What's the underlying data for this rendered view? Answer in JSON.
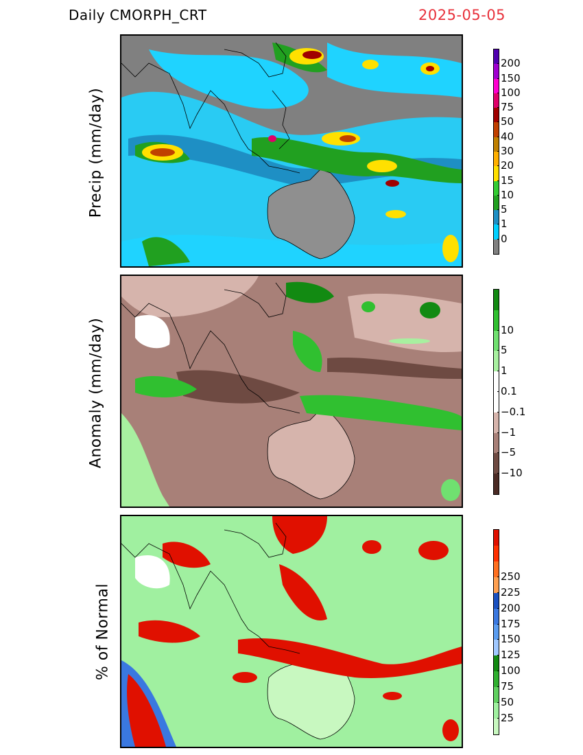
{
  "header": {
    "product": "Daily  CMORPH_CRT",
    "date": "2025-05-05",
    "date_color": "#e8303a"
  },
  "panels": [
    {
      "id": "precip",
      "ylabel": "Precip  (mm/day)",
      "colorbar": {
        "colors": [
          "#808080",
          "#00d0ff",
          "#1e8fc4",
          "#21a020",
          "#33cc33",
          "#ffe000",
          "#ffb000",
          "#c08000",
          "#c04000",
          "#a00000",
          "#e0006a",
          "#ff00d0",
          "#a000d0",
          "#5000b0"
        ],
        "tick_labels": [
          "0",
          "1",
          "5",
          "10",
          "15",
          "20",
          "30",
          "40",
          "50",
          "75",
          "100",
          "150",
          "200"
        ]
      }
    },
    {
      "id": "anomaly",
      "ylabel": "Anomaly  (mm/day)",
      "colorbar": {
        "colors": [
          "#4a2a24",
          "#6e4a42",
          "#a88078",
          "#d6b4ac",
          "#ffffff",
          "#ffffff",
          "#a8f0a0",
          "#70e070",
          "#30c030",
          "#128a12"
        ],
        "tick_labels": [
          "−10",
          "−5",
          "−1",
          "−0.1",
          "0.1",
          "1",
          "5",
          "10"
        ]
      }
    },
    {
      "id": "percent",
      "ylabel": "%  of  Normal",
      "colorbar": {
        "colors": [
          "#c8f8c0",
          "#a0f0a0",
          "#60d060",
          "#30b030",
          "#128a12",
          "#a0c8ff",
          "#5a9cf0",
          "#3a78e0",
          "#1a50c0",
          "#ffa050",
          "#ff7020",
          "#ff3000",
          "#e01000"
        ],
        "tick_labels": [
          "25",
          "50",
          "75",
          "100",
          "125",
          "150",
          "175",
          "200",
          "225",
          "250"
        ]
      }
    }
  ]
}
